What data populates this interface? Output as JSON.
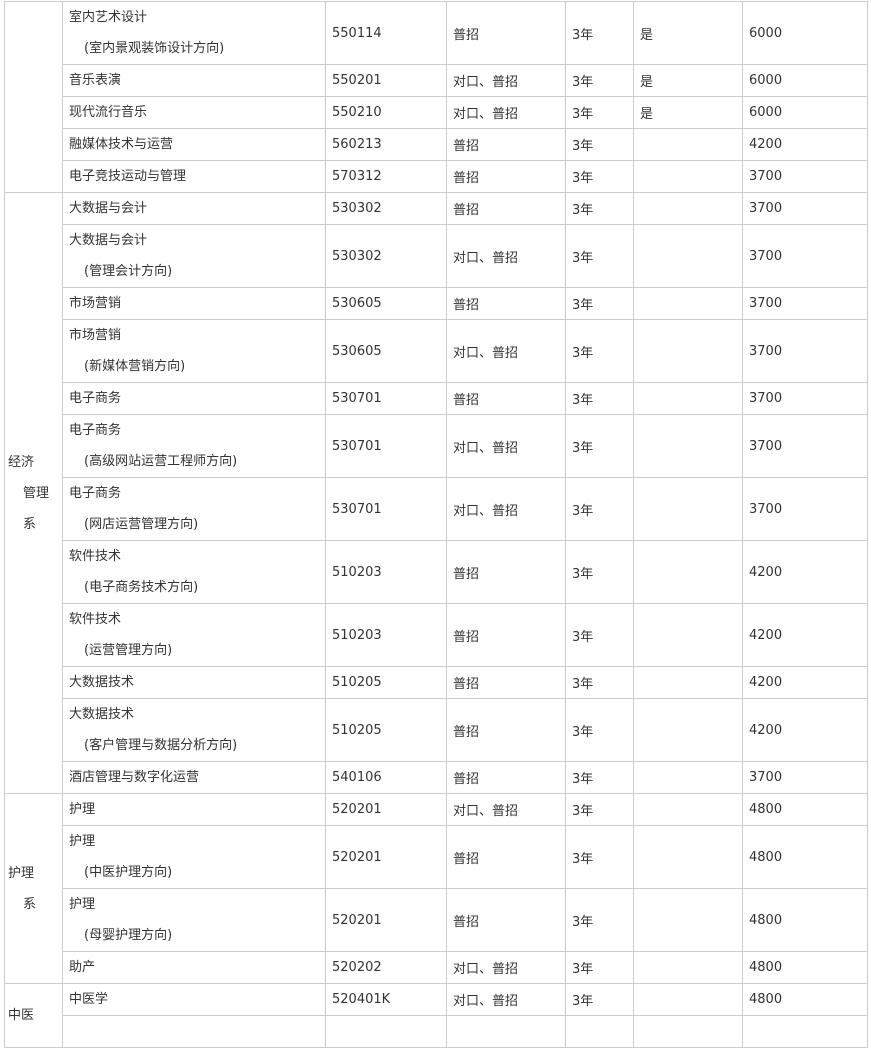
{
  "groups": [
    {
      "dept_lines": [],
      "rows": [
        {
          "name": "室内艺术设计",
          "sub": "(室内景观装饰设计方向)",
          "code": "550114",
          "type": "普招",
          "years": "3年",
          "flag": "是",
          "fee": "6000"
        },
        {
          "name": "音乐表演",
          "code": "550201",
          "type": "对口、普招",
          "years": "3年",
          "flag": "是",
          "fee": "6000"
        },
        {
          "name": "现代流行音乐",
          "code": "550210",
          "type": "对口、普招",
          "years": "3年",
          "flag": "是",
          "fee": "6000"
        },
        {
          "name": "融媒体技术与运营",
          "code": "560213",
          "type": "普招",
          "years": "3年",
          "flag": "",
          "fee": "4200"
        },
        {
          "name": "电子竞技运动与管理",
          "code": "570312",
          "type": "普招",
          "years": "3年",
          "flag": "",
          "fee": "3700"
        }
      ]
    },
    {
      "dept_lines": [
        "经济",
        "管理",
        "系"
      ],
      "rows": [
        {
          "name": "大数据与会计",
          "code": "530302",
          "type": "普招",
          "years": "3年",
          "flag": "",
          "fee": "3700"
        },
        {
          "name": "大数据与会计",
          "sub": "(管理会计方向)",
          "code": "530302",
          "type": "对口、普招",
          "years": "3年",
          "flag": "",
          "fee": "3700"
        },
        {
          "name": "市场营销",
          "code": "530605",
          "type": "普招",
          "years": "3年",
          "flag": "",
          "fee": "3700"
        },
        {
          "name": "市场营销",
          "sub": "(新媒体营销方向)",
          "code": "530605",
          "type": "对口、普招",
          "years": "3年",
          "flag": "",
          "fee": "3700"
        },
        {
          "name": "电子商务",
          "code": "530701",
          "type": "普招",
          "years": "3年",
          "flag": "",
          "fee": "3700"
        },
        {
          "name": "电子商务",
          "sub": "(高级网站运营工程师方向)",
          "code": "530701",
          "type": "对口、普招",
          "years": "3年",
          "flag": "",
          "fee": "3700"
        },
        {
          "name": "电子商务",
          "sub": "(网店运营管理方向)",
          "code": "530701",
          "type": "对口、普招",
          "years": "3年",
          "flag": "",
          "fee": "3700"
        },
        {
          "name": "软件技术",
          "sub": "(电子商务技术方向)",
          "code": "510203",
          "type": "普招",
          "years": "3年",
          "flag": "",
          "fee": "4200"
        },
        {
          "name": "软件技术",
          "sub": "(运营管理方向)",
          "code": "510203",
          "type": "普招",
          "years": "3年",
          "flag": "",
          "fee": "4200"
        },
        {
          "name": "大数据技术",
          "code": "510205",
          "type": "普招",
          "years": "3年",
          "flag": "",
          "fee": "4200"
        },
        {
          "name": "大数据技术",
          "sub": "(客户管理与数据分析方向)",
          "code": "510205",
          "type": "普招",
          "years": "3年",
          "flag": "",
          "fee": "4200"
        },
        {
          "name": "酒店管理与数字化运营",
          "code": "540106",
          "type": "普招",
          "years": "3年",
          "flag": "",
          "fee": "3700"
        }
      ]
    },
    {
      "dept_lines": [
        "护理",
        "系"
      ],
      "rows": [
        {
          "name": "护理",
          "code": "520201",
          "type": "对口、普招",
          "years": "3年",
          "flag": "",
          "fee": "4800"
        },
        {
          "name": "护理",
          "sub": "(中医护理方向)",
          "code": "520201",
          "type": "普招",
          "years": "3年",
          "flag": "",
          "fee": "4800"
        },
        {
          "name": "护理",
          "sub": "(母婴护理方向)",
          "code": "520201",
          "type": "普招",
          "years": "3年",
          "flag": "",
          "fee": "4800"
        },
        {
          "name": "助产",
          "code": "520202",
          "type": "对口、普招",
          "years": "3年",
          "flag": "",
          "fee": "4800"
        }
      ]
    },
    {
      "dept_lines": [
        "中医"
      ],
      "rows": [
        {
          "name": "中医学",
          "code": "520401K",
          "type": "对口、普招",
          "years": "3年",
          "flag": "",
          "fee": "4800"
        },
        {
          "name": "",
          "code": "",
          "type": "",
          "years": "",
          "flag": "",
          "fee": ""
        }
      ]
    }
  ]
}
